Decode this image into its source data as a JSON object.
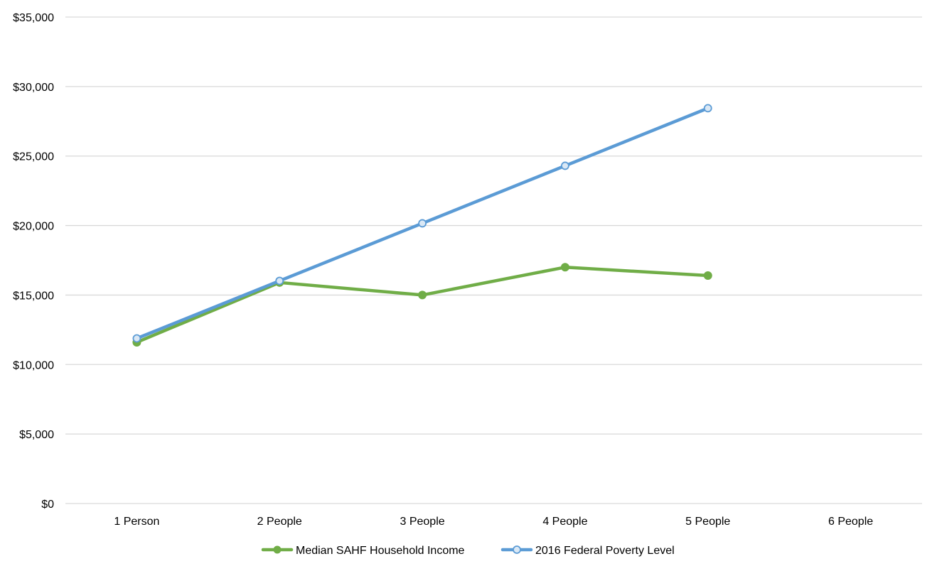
{
  "chart_data": {
    "type": "line",
    "title": "",
    "xlabel": "",
    "ylabel": "",
    "categories": [
      "1 Person",
      "2 People",
      "3 People",
      "4 People",
      "5 People",
      "6 People"
    ],
    "y_ticks": [
      "$0",
      "$5,000",
      "$10,000",
      "$15,000",
      "$20,000",
      "$25,000",
      "$30,000",
      "$35,000"
    ],
    "ylim": [
      0,
      35000
    ],
    "grid": true,
    "legend_position": "bottom",
    "series": [
      {
        "name": "Median SAHF Household Income",
        "values": [
          11600,
          15900,
          15000,
          17000,
          16400,
          null
        ],
        "color": "#70ad47",
        "marker": "filled-circle"
      },
      {
        "name": "2016 Federal Poverty Level",
        "values": [
          11880,
          16020,
          20160,
          24300,
          28440,
          null
        ],
        "color": "#5b9bd5",
        "marker": "hollow-circle"
      }
    ],
    "colors": {
      "grid": "#d9d9d9",
      "marker_fill_hollow": "#dae8f5"
    }
  }
}
